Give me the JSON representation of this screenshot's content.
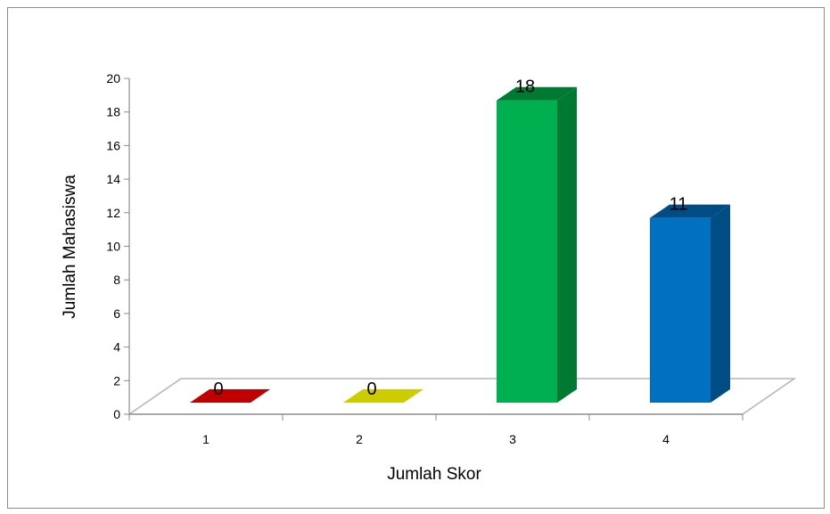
{
  "chart_data": {
    "type": "bar",
    "style": "3d-column",
    "categories": [
      "1",
      "2",
      "3",
      "4"
    ],
    "values": [
      0,
      0,
      18,
      11
    ],
    "data_labels": [
      "0",
      "0",
      "18",
      "11"
    ],
    "colors": [
      "#c00000",
      "#cccc00",
      "#00b050",
      "#0070c0"
    ],
    "colors_side": [
      "#8a0000",
      "#9a9a00",
      "#007a33",
      "#004d86"
    ],
    "title": "",
    "xlabel": "Jumlah Skor",
    "ylabel": "Jumlah Mahasiswa",
    "ylim": [
      0,
      20
    ],
    "yticks": [
      "0",
      "2",
      "4",
      "6",
      "8",
      "10",
      "12",
      "14",
      "16",
      "18",
      "20"
    ],
    "grid": false,
    "legend": "none"
  }
}
